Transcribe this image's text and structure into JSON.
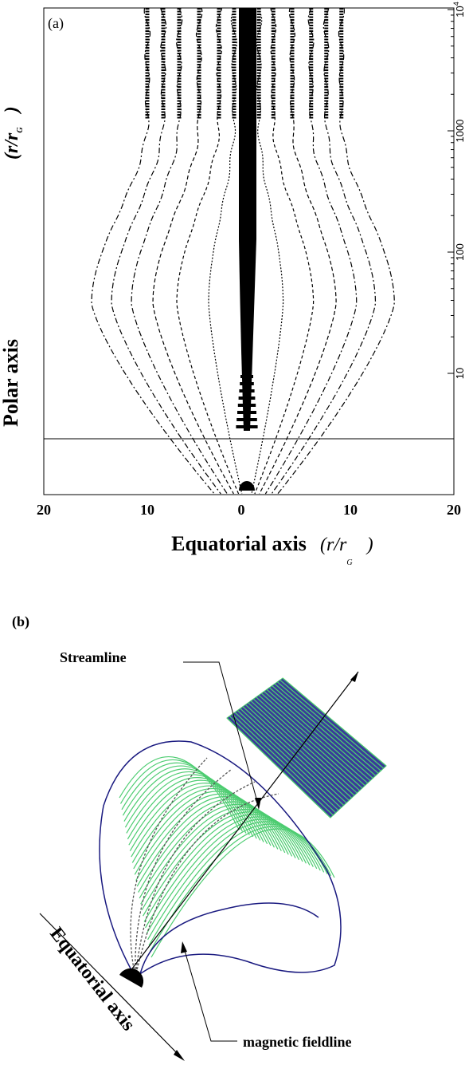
{
  "panel_a": {
    "label": "(a)",
    "y_label": "Polar axis",
    "y_unit": [
      "(r/r",
      "G",
      ")"
    ],
    "y_ticks": [
      {
        "base": "10"
      },
      {
        "base": "100"
      },
      {
        "base": "1000"
      },
      {
        "base": "10",
        "exp": "4"
      }
    ],
    "x_ticks": [
      "20",
      "10",
      "0",
      "10",
      "20"
    ],
    "x_label": "Equatorial axis",
    "x_unit": [
      "(r/r",
      "G",
      ")"
    ]
  },
  "panel_b": {
    "label": "(b)",
    "streamline": "Streamline",
    "fieldline": "magnetic fieldline",
    "axis": "Equatorial axis"
  }
}
